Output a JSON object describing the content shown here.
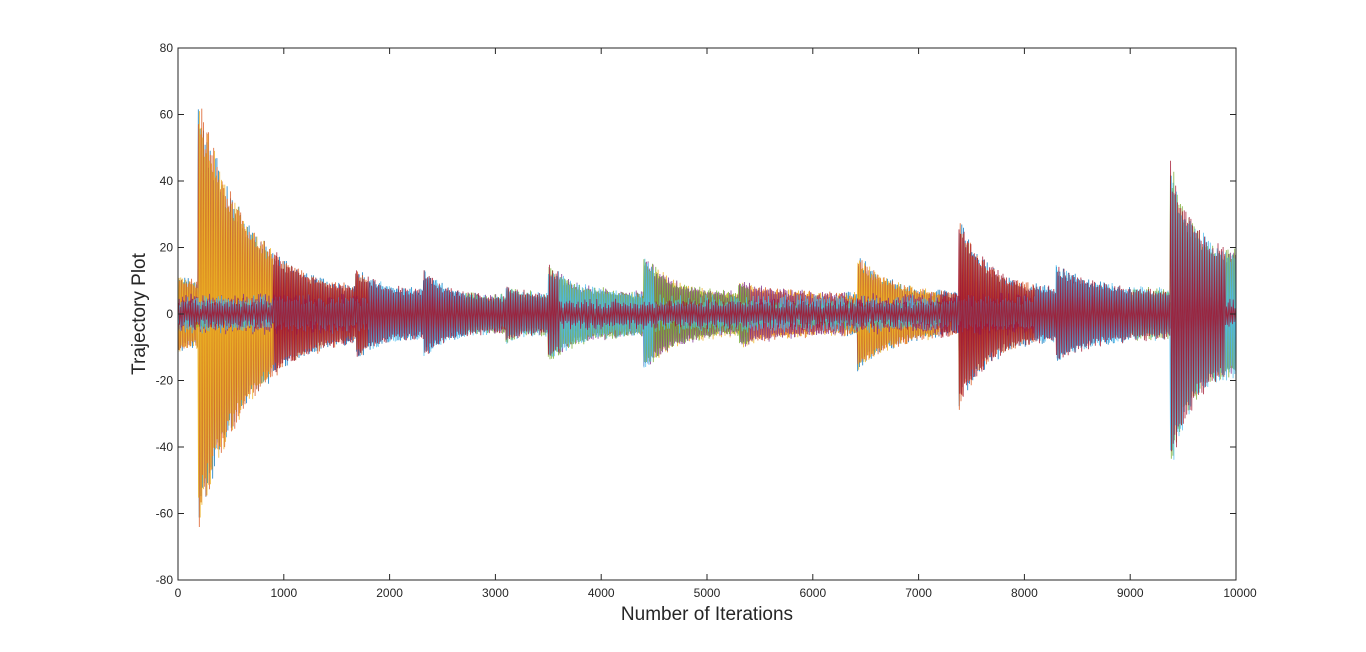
{
  "chart_data": {
    "type": "line",
    "title": "",
    "xlabel": "Number of Iterations",
    "ylabel": "Trajectory Plot",
    "xlim": [
      0,
      10000
    ],
    "ylim": [
      -80,
      80
    ],
    "xticks": [
      0,
      1000,
      2000,
      3000,
      4000,
      5000,
      6000,
      7000,
      8000,
      9000,
      10000
    ],
    "yticks": [
      -80,
      -60,
      -40,
      -20,
      0,
      20,
      40,
      60,
      80
    ],
    "xtick_labels": [
      "0",
      "1000",
      "2000",
      "3000",
      "4000",
      "5000",
      "6000",
      "7000",
      "8000",
      "9000",
      "10000"
    ],
    "ytick_labels": [
      "-80",
      "-60",
      "-40",
      "-20",
      "0",
      "20",
      "40",
      "60",
      "80"
    ],
    "grid": false,
    "legend": "none",
    "colors": [
      "#0072BD",
      "#D95319",
      "#EDB120",
      "#7E2F8E",
      "#77AC30",
      "#4DBEEE",
      "#A2142F"
    ],
    "series_count": 7,
    "envelope_segments": [
      {
        "x_start": 0,
        "x_end": 190,
        "amp_start": 12,
        "amp_end": 10
      },
      {
        "x_start": 190,
        "x_end": 1680,
        "amp_start": 66,
        "amp_end": 6
      },
      {
        "x_start": 1680,
        "x_end": 2320,
        "amp_start": 14,
        "amp_end": 7
      },
      {
        "x_start": 2320,
        "x_end": 3100,
        "amp_start": 13,
        "amp_end": 5
      },
      {
        "x_start": 3100,
        "x_end": 3500,
        "amp_start": 9,
        "amp_end": 6
      },
      {
        "x_start": 3500,
        "x_end": 4400,
        "amp_start": 15,
        "amp_end": 6
      },
      {
        "x_start": 4400,
        "x_end": 5300,
        "amp_start": 18,
        "amp_end": 6
      },
      {
        "x_start": 5300,
        "x_end": 6420,
        "amp_start": 10,
        "amp_end": 6
      },
      {
        "x_start": 6420,
        "x_end": 7380,
        "amp_start": 18,
        "amp_end": 6
      },
      {
        "x_start": 7380,
        "x_end": 8300,
        "amp_start": 29,
        "amp_end": 7
      },
      {
        "x_start": 8300,
        "x_end": 9380,
        "amp_start": 15,
        "amp_end": 7
      },
      {
        "x_start": 9380,
        "x_end": 10000,
        "amp_start": 48,
        "amp_end": 18
      }
    ],
    "baseline_band": 6
  }
}
